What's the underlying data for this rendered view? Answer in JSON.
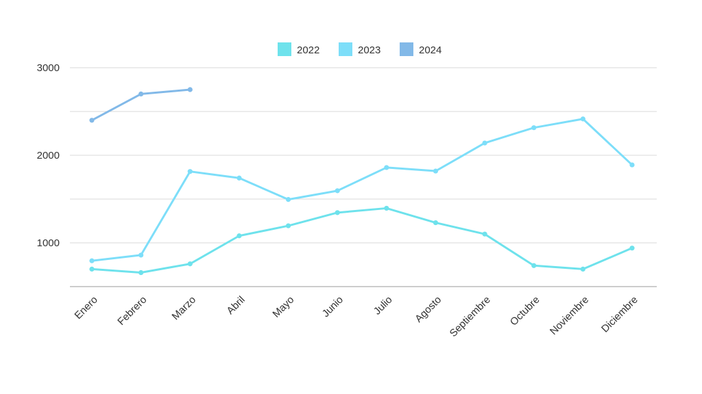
{
  "chart_data": {
    "type": "line",
    "categories": [
      "Enero",
      "Febrero",
      "Marzo",
      "Abril",
      "Mayo",
      "Junio",
      "Julio",
      "Agosto",
      "Septiembre",
      "Octubre",
      "Noviembre",
      "Diciembre"
    ],
    "series": [
      {
        "name": "2022",
        "color": "#6ee2ec",
        "values": [
          700,
          660,
          760,
          1080,
          1195,
          1345,
          1395,
          1230,
          1100,
          740,
          700,
          940
        ]
      },
      {
        "name": "2023",
        "color": "#7ddef9",
        "values": [
          795,
          860,
          1815,
          1740,
          1495,
          1595,
          1860,
          1820,
          2140,
          2315,
          2415,
          1890
        ]
      },
      {
        "name": "2024",
        "color": "#82b9e8",
        "values": [
          2400,
          2700,
          2750,
          null,
          null,
          null,
          null,
          null,
          null,
          null,
          null,
          null
        ]
      }
    ],
    "yticks": [
      1000,
      2000,
      3000
    ],
    "ylim": [
      500,
      3000
    ],
    "grid": true,
    "legend_position": "top-center",
    "title": "",
    "xlabel": "",
    "ylabel": ""
  }
}
